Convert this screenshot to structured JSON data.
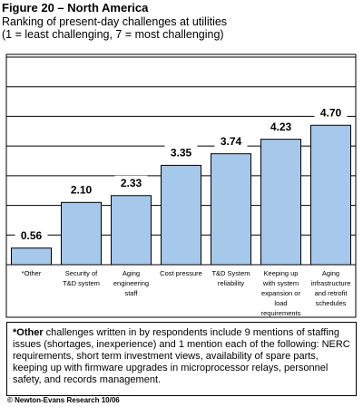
{
  "chart_data": {
    "type": "bar",
    "title": "Figure 20 – North America",
    "subtitle": [
      "Ranking of present-day challenges at utilities",
      "(1 = least challenging, 7 = most challenging)"
    ],
    "categories": [
      "*Other",
      "Security of\nT&D system",
      "Aging\nengineering\nstaff",
      "Cost pressure",
      "T&D System\nreliability",
      "Keeping up\nwith system\nexpansion or\nload\nrequirements",
      "Aging\ninfrastructure\nand retrofit\nschedules"
    ],
    "values": [
      0.56,
      2.1,
      2.33,
      3.35,
      3.74,
      4.23,
      4.7
    ],
    "value_labels": [
      "0.56",
      "2.10",
      "2.33",
      "3.35",
      "3.74",
      "4.23",
      "4.70"
    ],
    "color": "#a6c8ea",
    "ylim": [
      0,
      7
    ],
    "yticks": [
      0,
      1,
      2,
      3,
      4,
      5,
      6,
      7
    ],
    "grid": true,
    "tick_labels": false
  },
  "footnote": {
    "lead": "*Other",
    "text": " challenges written in by respondents include 9 mentions of staffing issues (shortages, inexperience) and 1 mention each of the following: NERC requirements, short term investment views, availability of spare parts, keeping up with firmware upgrades in microprocessor relays, personnel safety, and records management."
  },
  "copyright": "© Newton-Evans Research  10/06"
}
